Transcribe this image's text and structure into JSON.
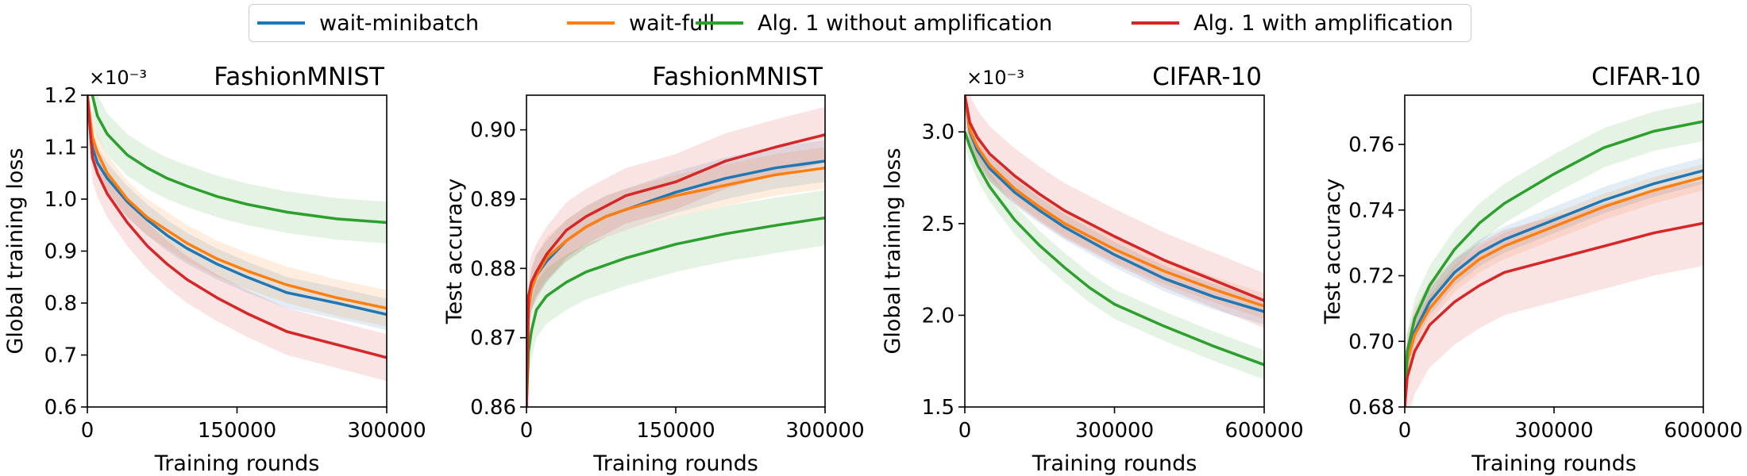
{
  "legend": {
    "items": [
      {
        "label": "wait-minibatch",
        "color": "#1f77b4"
      },
      {
        "label": "wait-full",
        "color": "#ff7f0e"
      },
      {
        "label": "Alg. 1 without amplification",
        "color": "#2ca02c"
      },
      {
        "label": "Alg. 1 with amplification",
        "color": "#d62728"
      }
    ]
  },
  "chart_data": [
    {
      "type": "line",
      "title": "FashionMNIST",
      "xlabel": "Training rounds",
      "ylabel": "Global training loss",
      "scale_label": "×10⁻³",
      "xlim": [
        0,
        300000
      ],
      "ylim": [
        0.6,
        1.2
      ],
      "xticks": [
        0,
        150000,
        300000
      ],
      "xtick_labels": [
        "0",
        "150000",
        "300000"
      ],
      "yticks": [
        0.6,
        0.7,
        0.8,
        0.9,
        1.0,
        1.1,
        1.2
      ],
      "ytick_labels": [
        "0.6",
        "0.7",
        "0.8",
        "0.9",
        "1.0",
        "1.1",
        "1.2"
      ],
      "series": [
        {
          "name": "wait-minibatch",
          "color": "#1f77b4",
          "band": 0.03,
          "x": [
            0,
            5000,
            10000,
            20000,
            40000,
            60000,
            80000,
            100000,
            130000,
            160000,
            200000,
            250000,
            300000
          ],
          "y": [
            1.2,
            1.1,
            1.07,
            1.04,
            0.995,
            0.96,
            0.93,
            0.905,
            0.875,
            0.85,
            0.82,
            0.8,
            0.778
          ]
        },
        {
          "name": "wait-full",
          "color": "#ff7f0e",
          "band": 0.035,
          "x": [
            0,
            5000,
            10000,
            20000,
            40000,
            60000,
            80000,
            100000,
            130000,
            160000,
            200000,
            250000,
            300000
          ],
          "y": [
            1.2,
            1.12,
            1.09,
            1.05,
            1.0,
            0.965,
            0.94,
            0.915,
            0.885,
            0.862,
            0.835,
            0.81,
            0.79
          ]
        },
        {
          "name": "Alg. 1 without amplification",
          "color": "#2ca02c",
          "band": 0.04,
          "x": [
            5000,
            10000,
            20000,
            40000,
            60000,
            80000,
            100000,
            130000,
            160000,
            200000,
            250000,
            300000
          ],
          "y": [
            1.2,
            1.16,
            1.125,
            1.085,
            1.06,
            1.04,
            1.025,
            1.005,
            0.99,
            0.975,
            0.962,
            0.955
          ]
        },
        {
          "name": "Alg. 1 with amplification",
          "color": "#d62728",
          "band": 0.045,
          "x": [
            0,
            5000,
            10000,
            20000,
            40000,
            60000,
            80000,
            100000,
            130000,
            160000,
            200000,
            250000,
            280000,
            300000
          ],
          "y": [
            1.2,
            1.08,
            1.05,
            1.01,
            0.955,
            0.91,
            0.875,
            0.845,
            0.81,
            0.78,
            0.745,
            0.72,
            0.705,
            0.695
          ]
        }
      ]
    },
    {
      "type": "line",
      "title": "FashionMNIST",
      "xlabel": "Training rounds",
      "ylabel": "Test accuracy",
      "scale_label": "",
      "xlim": [
        0,
        300000
      ],
      "ylim": [
        0.86,
        0.905
      ],
      "xticks": [
        0,
        150000,
        300000
      ],
      "xtick_labels": [
        "0",
        "150000",
        "300000"
      ],
      "yticks": [
        0.86,
        0.87,
        0.88,
        0.89,
        0.9
      ],
      "ytick_labels": [
        "0.86",
        "0.87",
        "0.88",
        "0.89",
        "0.90"
      ],
      "series": [
        {
          "name": "wait-minibatch",
          "color": "#1f77b4",
          "band": 0.003,
          "x": [
            0,
            2000,
            5000,
            10000,
            20000,
            40000,
            60000,
            80000,
            100000,
            150000,
            200000,
            250000,
            300000
          ],
          "y": [
            0.86,
            0.874,
            0.877,
            0.879,
            0.881,
            0.884,
            0.886,
            0.8875,
            0.8885,
            0.891,
            0.893,
            0.8945,
            0.8955
          ]
        },
        {
          "name": "wait-full",
          "color": "#ff7f0e",
          "band": 0.003,
          "x": [
            0,
            2000,
            5000,
            10000,
            20000,
            40000,
            60000,
            80000,
            100000,
            150000,
            200000,
            250000,
            300000
          ],
          "y": [
            0.86,
            0.874,
            0.877,
            0.879,
            0.8815,
            0.884,
            0.886,
            0.8875,
            0.8885,
            0.8905,
            0.892,
            0.8935,
            0.8945
          ]
        },
        {
          "name": "Alg. 1 without amplification",
          "color": "#2ca02c",
          "band": 0.004,
          "x": [
            0,
            2000,
            5000,
            10000,
            20000,
            40000,
            60000,
            80000,
            100000,
            150000,
            200000,
            250000,
            300000
          ],
          "y": [
            0.86,
            0.868,
            0.871,
            0.874,
            0.876,
            0.878,
            0.8795,
            0.8805,
            0.8815,
            0.8835,
            0.885,
            0.8862,
            0.8873
          ]
        },
        {
          "name": "Alg. 1 with amplification",
          "color": "#d62728",
          "band": 0.004,
          "x": [
            0,
            2000,
            5000,
            10000,
            20000,
            40000,
            60000,
            80000,
            100000,
            150000,
            200000,
            250000,
            300000
          ],
          "y": [
            0.86,
            0.876,
            0.878,
            0.8795,
            0.882,
            0.8855,
            0.8875,
            0.889,
            0.8905,
            0.8925,
            0.8955,
            0.8975,
            0.8993
          ]
        }
      ]
    },
    {
      "type": "line",
      "title": "CIFAR-10",
      "xlabel": "Training rounds",
      "ylabel": "Global training loss",
      "scale_label": "×10⁻³",
      "xlim": [
        0,
        600000
      ],
      "ylim": [
        1.5,
        3.2
      ],
      "xticks": [
        0,
        300000,
        600000
      ],
      "xtick_labels": [
        "0",
        "300000",
        "600000"
      ],
      "yticks": [
        1.5,
        2.0,
        2.5,
        3.0
      ],
      "ytick_labels": [
        "1.5",
        "2.0",
        "2.5",
        "3.0"
      ],
      "series": [
        {
          "name": "wait-minibatch",
          "color": "#1f77b4",
          "band": 0.07,
          "x": [
            0,
            10000,
            25000,
            50000,
            100000,
            150000,
            200000,
            300000,
            400000,
            500000,
            600000
          ],
          "y": [
            3.2,
            3.0,
            2.9,
            2.8,
            2.67,
            2.57,
            2.48,
            2.33,
            2.2,
            2.1,
            2.02
          ]
        },
        {
          "name": "wait-full",
          "color": "#ff7f0e",
          "band": 0.07,
          "x": [
            0,
            10000,
            25000,
            50000,
            100000,
            150000,
            200000,
            300000,
            400000,
            500000,
            600000
          ],
          "y": [
            3.2,
            3.01,
            2.92,
            2.82,
            2.69,
            2.59,
            2.5,
            2.36,
            2.24,
            2.14,
            2.05
          ]
        },
        {
          "name": "Alg. 1 without amplification",
          "color": "#2ca02c",
          "band": 0.08,
          "x": [
            0,
            10000,
            25000,
            50000,
            100000,
            150000,
            200000,
            250000,
            300000,
            400000,
            500000,
            550000,
            600000
          ],
          "y": [
            3.0,
            2.92,
            2.82,
            2.7,
            2.52,
            2.38,
            2.26,
            2.15,
            2.06,
            1.94,
            1.83,
            1.78,
            1.73
          ]
        },
        {
          "name": "Alg. 1 with amplification",
          "color": "#d62728",
          "band": 0.15,
          "x": [
            0,
            10000,
            25000,
            50000,
            100000,
            150000,
            200000,
            300000,
            400000,
            500000,
            600000
          ],
          "y": [
            3.2,
            3.05,
            2.97,
            2.88,
            2.76,
            2.66,
            2.57,
            2.43,
            2.3,
            2.19,
            2.08
          ]
        }
      ]
    },
    {
      "type": "line",
      "title": "CIFAR-10",
      "xlabel": "Training rounds",
      "ylabel": "Test accuracy",
      "scale_label": "",
      "xlim": [
        0,
        600000
      ],
      "ylim": [
        0.68,
        0.775
      ],
      "xticks": [
        0,
        300000,
        600000
      ],
      "xtick_labels": [
        "0",
        "300000",
        "600000"
      ],
      "yticks": [
        0.68,
        0.7,
        0.72,
        0.74,
        0.76
      ],
      "ytick_labels": [
        "0.68",
        "0.70",
        "0.72",
        "0.74",
        "0.76"
      ],
      "series": [
        {
          "name": "wait-minibatch",
          "color": "#1f77b4",
          "band": 0.004,
          "x": [
            0,
            5000,
            20000,
            50000,
            100000,
            150000,
            200000,
            300000,
            400000,
            500000,
            600000
          ],
          "y": [
            0.68,
            0.695,
            0.703,
            0.712,
            0.721,
            0.727,
            0.731,
            0.737,
            0.743,
            0.748,
            0.752
          ]
        },
        {
          "name": "wait-full",
          "color": "#ff7f0e",
          "band": 0.004,
          "x": [
            0,
            5000,
            20000,
            50000,
            100000,
            150000,
            200000,
            300000,
            400000,
            500000,
            600000
          ],
          "y": [
            0.68,
            0.694,
            0.702,
            0.71,
            0.719,
            0.725,
            0.729,
            0.735,
            0.741,
            0.746,
            0.75
          ]
        },
        {
          "name": "Alg. 1 without amplification",
          "color": "#2ca02c",
          "band": 0.006,
          "x": [
            0,
            5000,
            20000,
            50000,
            100000,
            150000,
            200000,
            300000,
            400000,
            500000,
            600000
          ],
          "y": [
            0.68,
            0.697,
            0.707,
            0.717,
            0.728,
            0.736,
            0.742,
            0.751,
            0.759,
            0.764,
            0.767
          ]
        },
        {
          "name": "Alg. 1 with amplification",
          "color": "#d62728",
          "band": 0.013,
          "x": [
            0,
            5000,
            20000,
            50000,
            100000,
            150000,
            200000,
            300000,
            400000,
            500000,
            600000
          ],
          "y": [
            0.68,
            0.689,
            0.697,
            0.705,
            0.712,
            0.717,
            0.721,
            0.725,
            0.729,
            0.733,
            0.736
          ]
        }
      ]
    }
  ]
}
